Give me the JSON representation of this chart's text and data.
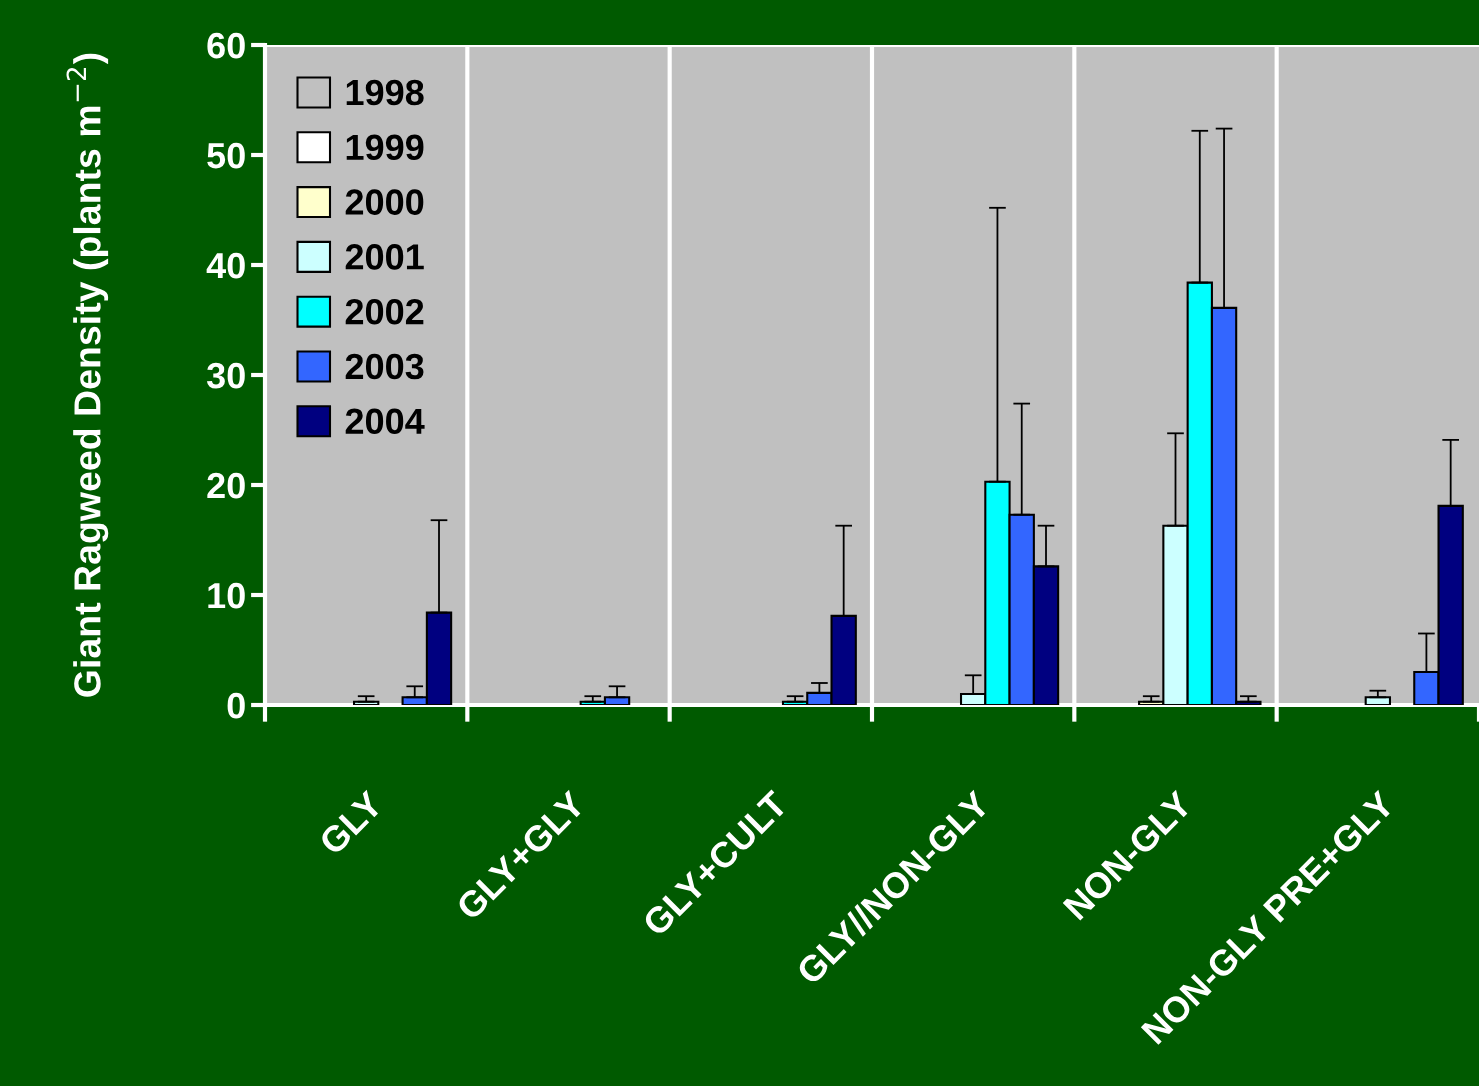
{
  "chart_data": {
    "type": "bar",
    "ylabel": "Giant Ragweed Density (plants m$^{−2}$)",
    "categories": [
      "GLY",
      "GLY+GLY",
      "GLY+CULT",
      "GLY//NON-GLY",
      "NON-GLY",
      "NON-GLY PRE+GLY"
    ],
    "series": [
      {
        "name": "1998",
        "color": "#c0c0c0",
        "values": [
          null,
          null,
          null,
          null,
          null,
          null
        ],
        "errors": [
          null,
          null,
          null,
          null,
          null,
          null
        ]
      },
      {
        "name": "1999",
        "color": "#ffffff",
        "values": [
          null,
          null,
          null,
          null,
          null,
          null
        ],
        "errors": [
          null,
          null,
          null,
          null,
          null,
          null
        ]
      },
      {
        "name": "2000",
        "color": "#ffffcc",
        "values": [
          null,
          null,
          null,
          null,
          0.3,
          null
        ],
        "errors": [
          null,
          null,
          null,
          null,
          0.5,
          null
        ]
      },
      {
        "name": "2001",
        "color": "#ccffff",
        "values": [
          0.3,
          null,
          null,
          1.0,
          16.3,
          0.7
        ],
        "errors": [
          0.5,
          null,
          null,
          1.7,
          8.4,
          0.6
        ]
      },
      {
        "name": "2002",
        "color": "#00ffff",
        "values": [
          null,
          0.3,
          0.3,
          20.3,
          38.4,
          null
        ],
        "errors": [
          null,
          0.5,
          0.5,
          24.9,
          13.8,
          null
        ]
      },
      {
        "name": "2003",
        "color": "#3366ff",
        "values": [
          0.7,
          0.7,
          1.1,
          17.3,
          36.1,
          3.0
        ],
        "errors": [
          1.0,
          1.0,
          0.9,
          10.1,
          16.3,
          3.5
        ]
      },
      {
        "name": "2004",
        "color": "#000080",
        "values": [
          8.4,
          null,
          8.1,
          12.6,
          0.3,
          18.1
        ],
        "errors": [
          8.4,
          null,
          8.2,
          3.7,
          0.5,
          6.0
        ]
      }
    ],
    "ylim": [
      0,
      60
    ],
    "yticks": [
      0,
      10,
      20,
      30,
      40,
      50,
      60
    ],
    "grid": "x",
    "legend": "top left"
  }
}
